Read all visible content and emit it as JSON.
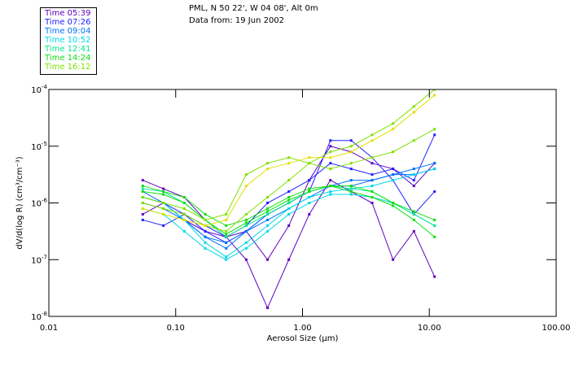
{
  "header": {
    "location": "PML, N 50 22', W 04 08', Alt 0m",
    "date": "Data from: 19 Jun 2002"
  },
  "chart_data": {
    "type": "line",
    "title": "PML, N 50 22', W 04 08', Alt 0m",
    "subtitle": "Data from: 19 Jun 2002",
    "xlabel": "Aerosol Size (µm)",
    "ylabel": "dV/d(log R) (cm³/cm⁻³)",
    "xscale": "log",
    "yscale": "log",
    "xlim": [
      0.01,
      100
    ],
    "ylim_log10": [
      -8,
      -4
    ],
    "x_ticks": [
      "0.01",
      "0.10",
      "1.00",
      "10.00",
      "100.00"
    ],
    "y_ticks": [
      {
        "base": "10",
        "exp": "-4"
      },
      {
        "base": "10",
        "exp": "-5"
      },
      {
        "base": "10",
        "exp": "-6"
      },
      {
        "base": "10",
        "exp": "-7"
      },
      {
        "base": "10",
        "exp": "-8"
      }
    ],
    "legend_placement": "top-left, outside",
    "legend": [
      {
        "label": "Time 05:39",
        "color": "#6000c0"
      },
      {
        "label": "Time 07:26",
        "color": "#2020ff"
      },
      {
        "label": "Time 09:04",
        "color": "#0070ff"
      },
      {
        "label": "Time 10:52",
        "color": "#00d8e8"
      },
      {
        "label": "Time 12:41",
        "color": "#00e890"
      },
      {
        "label": "Time 14:24",
        "color": "#10e010"
      },
      {
        "label": "Time 16:12",
        "color": "#80e000"
      }
    ],
    "x": [
      0.055,
      0.08,
      0.117,
      0.171,
      0.25,
      0.36,
      0.53,
      0.78,
      1.13,
      1.66,
      2.42,
      3.54,
      5.17,
      7.56,
      11.0
    ],
    "series": [
      {
        "name": "05:39",
        "color": "#6000c0",
        "values_log10": [
          -5.6,
          -5.75,
          -5.9,
          -6.3,
          -6.6,
          -6.5,
          -7.0,
          -6.4,
          -5.6,
          -5.0,
          -5.1,
          -5.3,
          -5.4,
          -5.7,
          -5.3
        ]
      },
      {
        "name": "05:39",
        "color": "#6000c0",
        "values_log10": [
          -6.2,
          -6.0,
          -6.3,
          -6.5,
          -6.6,
          -7.0,
          -7.85,
          -7.0,
          -6.2,
          -5.6,
          -5.8,
          -6.0,
          -7.0,
          -6.5,
          -7.3
        ]
      },
      {
        "name": "07:26",
        "color": "#2020ff",
        "values_log10": [
          -5.9,
          -6.0,
          -6.2,
          -6.4,
          -6.6,
          -6.4,
          -6.0,
          -5.8,
          -5.6,
          -5.3,
          -5.4,
          -5.5,
          -5.4,
          -5.6,
          -4.8
        ]
      },
      {
        "name": "07:26",
        "color": "#2020ff",
        "values_log10": [
          -6.3,
          -6.4,
          -6.2,
          -6.5,
          -6.7,
          -6.5,
          -6.2,
          -6.0,
          -5.8,
          -4.9,
          -4.9,
          -5.2,
          -5.6,
          -6.2,
          -5.8
        ]
      },
      {
        "name": "09:04",
        "color": "#0070ff",
        "values_log10": [
          -5.8,
          -6.0,
          -6.3,
          -6.6,
          -6.8,
          -6.5,
          -6.3,
          -6.1,
          -5.9,
          -5.7,
          -5.6,
          -5.6,
          -5.5,
          -5.4,
          -5.3
        ]
      },
      {
        "name": "09:04",
        "color": "#0070ff",
        "values_log10": [
          -6.0,
          -6.1,
          -6.3,
          -6.6,
          -6.7,
          -6.5,
          -6.2,
          -6.0,
          -5.8,
          -5.7,
          -5.7,
          -5.6,
          -5.5,
          -5.5,
          -5.4
        ]
      },
      {
        "name": "10:52",
        "color": "#00d8e8",
        "values_log10": [
          -5.9,
          -6.0,
          -6.3,
          -6.7,
          -6.95,
          -6.7,
          -6.4,
          -6.1,
          -5.9,
          -5.8,
          -5.75,
          -5.7,
          -5.6,
          -5.5,
          -5.4
        ]
      },
      {
        "name": "10:52",
        "color": "#00d8e8",
        "values_log10": [
          -6.1,
          -6.2,
          -6.5,
          -6.8,
          -7.0,
          -6.8,
          -6.5,
          -6.2,
          -6.0,
          -5.85,
          -5.85,
          -5.9,
          -6.0,
          -6.2,
          -6.4
        ]
      },
      {
        "name": "12:41",
        "color": "#00e890",
        "values_log10": [
          -5.75,
          -5.8,
          -6.0,
          -6.3,
          -6.6,
          -6.4,
          -6.2,
          -6.0,
          -5.8,
          -5.7,
          -5.75,
          -5.8,
          -6.0,
          -6.2,
          -6.4
        ]
      },
      {
        "name": "14:24",
        "color": "#10e010",
        "values_log10": [
          -5.8,
          -5.85,
          -6.0,
          -6.3,
          -6.55,
          -6.35,
          -6.15,
          -5.95,
          -5.8,
          -5.7,
          -5.8,
          -5.9,
          -6.05,
          -6.3,
          -6.6
        ]
      },
      {
        "name": "14:24",
        "color": "#10e010",
        "values_log10": [
          -5.7,
          -5.8,
          -5.9,
          -6.2,
          -6.4,
          -6.3,
          -6.1,
          -5.9,
          -5.75,
          -5.7,
          -5.7,
          -5.8,
          -6.0,
          -6.15,
          -6.3
        ]
      },
      {
        "name": "16:12",
        "color": "#80e000",
        "values_log10": [
          -6.0,
          -6.1,
          -6.2,
          -6.4,
          -6.5,
          -6.2,
          -5.9,
          -5.6,
          -5.3,
          -5.1,
          -5.0,
          -4.8,
          -4.6,
          -4.3,
          -4.0
        ]
      },
      {
        "name": "16:12",
        "color": "#80e000",
        "values_log10": [
          -5.9,
          -6.0,
          -6.1,
          -6.3,
          -6.2,
          -5.5,
          -5.3,
          -5.2,
          -5.3,
          -5.4,
          -5.3,
          -5.2,
          -5.1,
          -4.9,
          -4.7
        ]
      },
      {
        "name": "16:12",
        "color": "#e0e000",
        "values_log10": [
          -6.1,
          -6.2,
          -6.3,
          -6.4,
          -6.3,
          -5.7,
          -5.4,
          -5.3,
          -5.2,
          -5.2,
          -5.1,
          -4.9,
          -4.7,
          -4.4,
          -4.1
        ]
      }
    ]
  }
}
